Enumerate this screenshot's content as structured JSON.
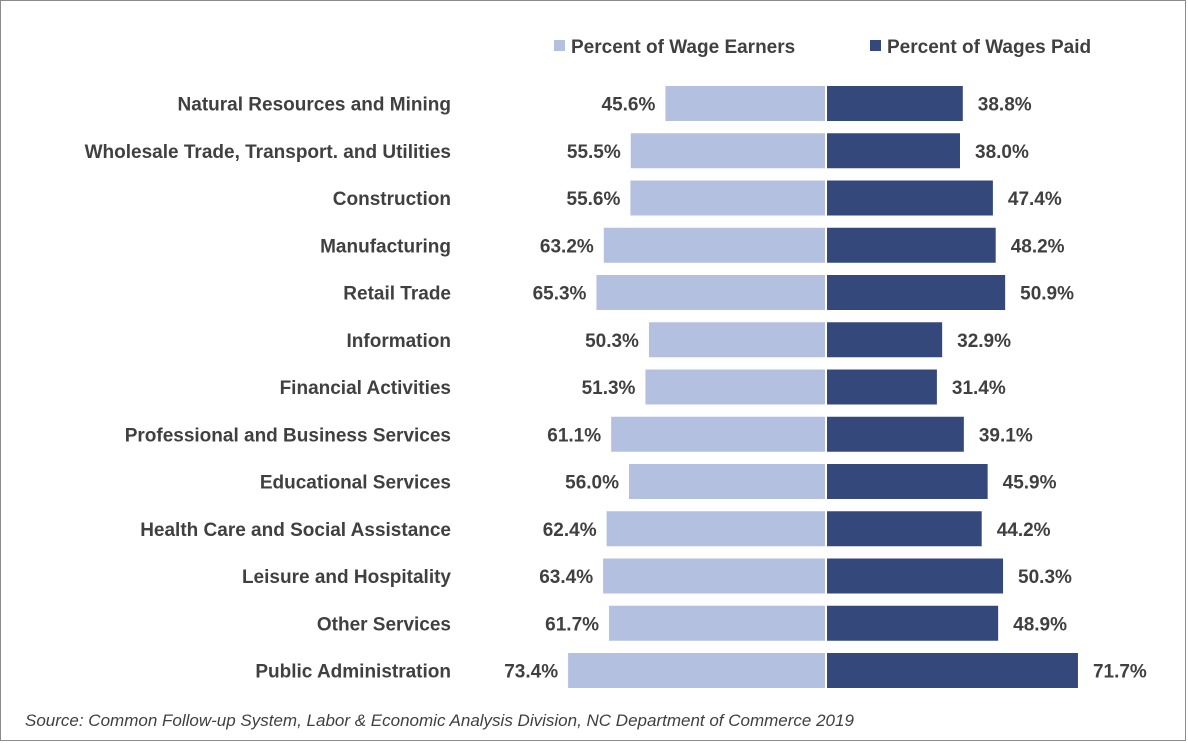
{
  "chart_data": {
    "type": "bar",
    "orientation": "horizontal-diverging",
    "categories": [
      "Natural Resources and Mining",
      "Wholesale Trade, Transport. and Utilities",
      "Construction",
      "Manufacturing",
      "Retail Trade",
      "Information",
      "Financial Activities",
      "Professional and Business Services",
      "Educational Services",
      "Health Care and Social Assistance",
      "Leisure and Hospitality",
      "Other Services",
      "Public Administration"
    ],
    "series": [
      {
        "name": "Percent of Wage Earners",
        "color": "#b4c0e0",
        "side": "left",
        "values": [
          45.6,
          55.5,
          55.6,
          63.2,
          65.3,
          50.3,
          51.3,
          61.1,
          56.0,
          62.4,
          63.4,
          61.7,
          73.4
        ],
        "labels": [
          "45.6%",
          "55.5%",
          "55.6%",
          "63.2%",
          "65.3%",
          "50.3%",
          "51.3%",
          "61.1%",
          "56.0%",
          "62.4%",
          "63.4%",
          "61.7%",
          "73.4%"
        ]
      },
      {
        "name": "Percent of Wages Paid",
        "color": "#35487c",
        "side": "right",
        "values": [
          38.8,
          38.0,
          47.4,
          48.2,
          50.9,
          32.9,
          31.4,
          39.1,
          45.9,
          44.2,
          50.3,
          48.9,
          71.7
        ],
        "labels": [
          "38.8%",
          "38.0%",
          "47.4%",
          "48.2%",
          "50.9%",
          "32.9%",
          "31.4%",
          "39.1%",
          "45.9%",
          "44.2%",
          "50.3%",
          "48.9%",
          "71.7%"
        ]
      }
    ],
    "title": "",
    "xlabel": "",
    "ylabel": "",
    "legend": "top-center",
    "grid": false
  },
  "footer": {
    "source": "Source: Common Follow-up System, Labor & Economic Analysis Division, NC Department  of Commerce 2019"
  }
}
